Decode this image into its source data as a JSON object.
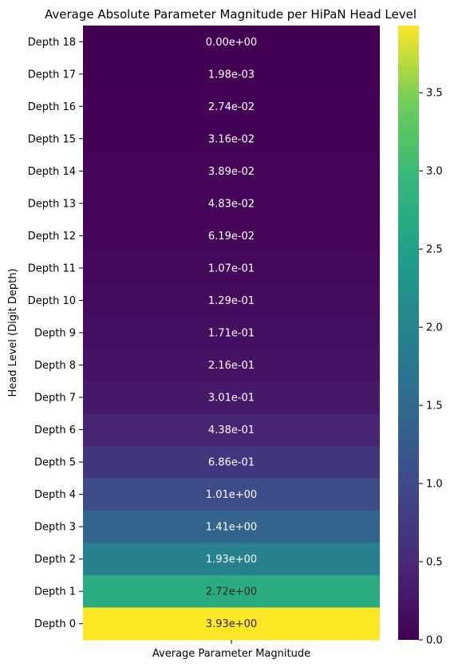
{
  "chart_data": {
    "type": "heatmap",
    "title": "Average Absolute Parameter Magnitude per HiPaN Head Level",
    "xlabel": "Average Parameter Magnitude",
    "ylabel": "Head Level (Digit Depth)",
    "row_labels": [
      "Depth 18",
      "Depth 17",
      "Depth 16",
      "Depth 15",
      "Depth 14",
      "Depth 13",
      "Depth 12",
      "Depth 11",
      "Depth 10",
      "Depth 9",
      "Depth 8",
      "Depth 7",
      "Depth 6",
      "Depth 5",
      "Depth 4",
      "Depth 3",
      "Depth 2",
      "Depth 1",
      "Depth 0"
    ],
    "values": [
      0.0,
      0.00198,
      0.0274,
      0.0316,
      0.0389,
      0.0483,
      0.0619,
      0.107,
      0.129,
      0.171,
      0.216,
      0.301,
      0.438,
      0.686,
      1.01,
      1.41,
      1.93,
      2.72,
      3.93
    ],
    "value_labels": [
      "0.00e+00",
      "1.98e-03",
      "2.74e-02",
      "3.16e-02",
      "3.89e-02",
      "4.83e-02",
      "6.19e-02",
      "1.07e-01",
      "1.29e-01",
      "1.71e-01",
      "2.16e-01",
      "3.01e-01",
      "4.38e-01",
      "6.86e-01",
      "1.01e+00",
      "1.41e+00",
      "1.93e+00",
      "2.72e+00",
      "3.93e+00"
    ],
    "colormap": "viridis",
    "colorbar": {
      "range": [
        0.0,
        3.93
      ],
      "ticks": [
        0.0,
        0.5,
        1.0,
        1.5,
        2.0,
        2.5,
        3.0,
        3.5
      ],
      "tick_labels": [
        "0.0",
        "0.5",
        "1.0",
        "1.5",
        "2.0",
        "2.5",
        "3.0",
        "3.5"
      ]
    },
    "grid": false,
    "legend": "colorbar-right"
  }
}
